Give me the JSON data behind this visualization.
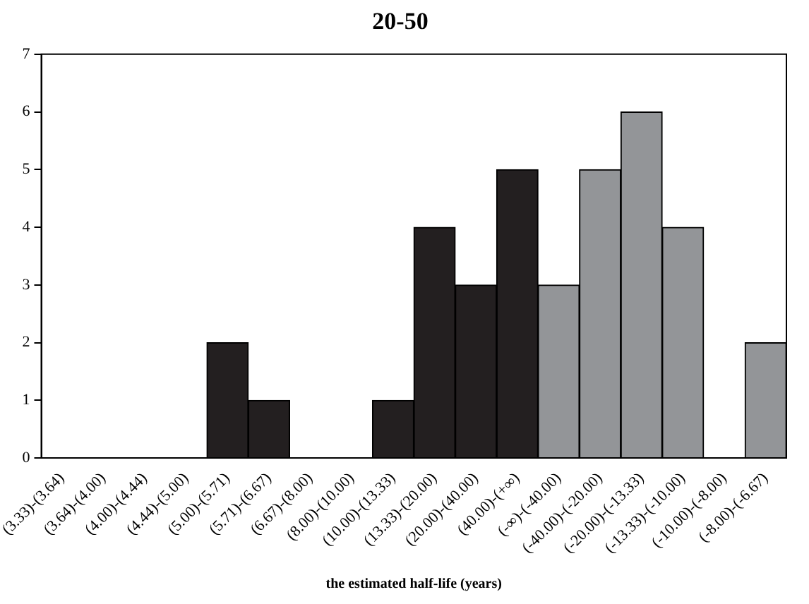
{
  "chart_data": {
    "type": "bar",
    "title": "20-50",
    "xlabel": "the estimated half-life (years)",
    "categories": [
      "(3.33)-(3.64)",
      "(3.64)-(4.00)",
      "(4.00)-(4.44)",
      "(4.44)-(5.00)",
      "(5.00)-(5.71)",
      "(5.71)-(6.67)",
      "(6.67)-(8.00)",
      "(8.00)-(10.00)",
      "(10.00)-(13.33)",
      "(13.33)-(20.00)",
      "(20.00)-(40.00)",
      "(40.00)-(+∞)",
      "(-∞)-(-40.00)",
      "(-40.00)-(-20.00)",
      "(-20.00)-(-13.33)",
      "(-13.33)-(-10.00)",
      "(-10.00)-(-8.00)",
      "(-8.00)-(-6.67)"
    ],
    "values": [
      0,
      0,
      0,
      0,
      2,
      1,
      0,
      0,
      1,
      4,
      3,
      5,
      3,
      5,
      6,
      4,
      0,
      2
    ],
    "colors": [
      "#231f20",
      "#231f20",
      "#231f20",
      "#231f20",
      "#231f20",
      "#231f20",
      "#231f20",
      "#231f20",
      "#231f20",
      "#231f20",
      "#231f20",
      "#231f20",
      "#939598",
      "#939598",
      "#939598",
      "#939598",
      "#939598",
      "#939598"
    ],
    "ylim": [
      0,
      7
    ],
    "yticks": [
      0,
      1,
      2,
      3,
      4,
      5,
      6,
      7
    ],
    "grid": false,
    "legend": false
  }
}
